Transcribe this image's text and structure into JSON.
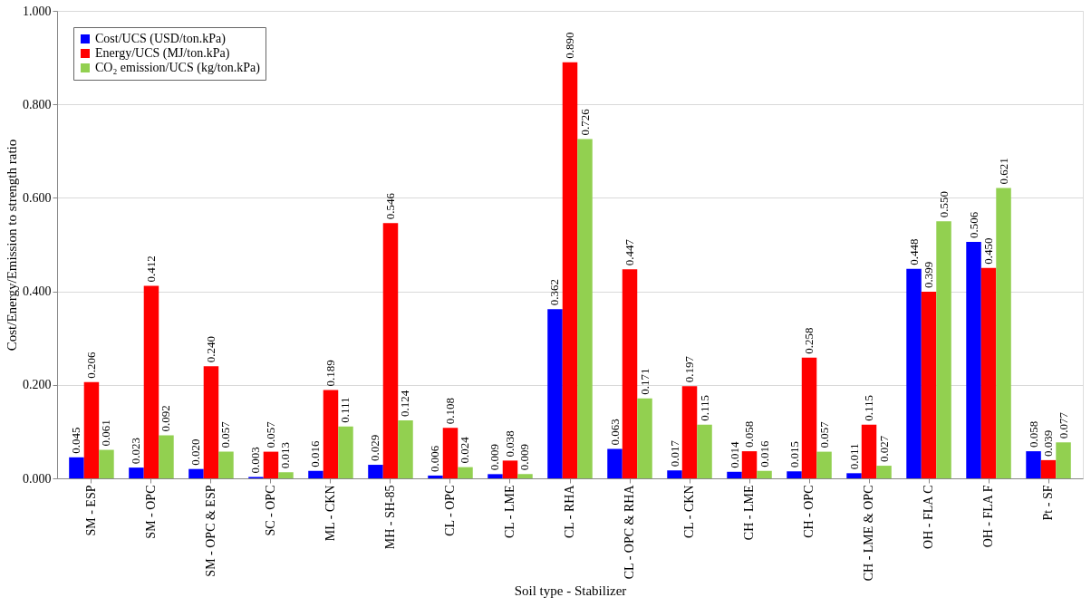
{
  "chart_data": {
    "type": "bar",
    "xlabel": "Soil type - Stabilizer",
    "ylabel": "Cost/Energy/Emission to strength ratio",
    "categories": [
      "SM - ESP",
      "SM - OPC",
      "SM - OPC & ESP",
      "SC - OPC",
      "ML - CKN",
      "MH - SH-85",
      "CL - OPC",
      "CL - LME",
      "CL - RHA",
      "CL - OPC & RHA",
      "CL - CKN",
      "CH - LME",
      "CH - OPC",
      "CH - LME & OPC",
      "OH - FLA C",
      "OH - FLA F",
      "Pt - SF"
    ],
    "series": [
      {
        "name": "Cost/UCS (USD/ton.kPa)",
        "color": "#0000ff",
        "values": [
          0.045,
          0.023,
          0.02,
          0.003,
          0.016,
          0.029,
          0.006,
          0.009,
          0.362,
          0.063,
          0.017,
          0.014,
          0.015,
          0.011,
          0.448,
          0.506,
          0.058
        ],
        "value_labels": [
          "0.045",
          "0.023",
          "0.020",
          "0.003",
          "0.016",
          "0.029",
          "0.006",
          "0.009",
          "0.362",
          "0.063",
          "0.017",
          "0.014",
          "0.015",
          "0.011",
          "0.448",
          "0.506",
          "0.058"
        ]
      },
      {
        "name": "Energy/UCS (MJ/ton.kPa)",
        "color": "#ff0000",
        "values": [
          0.206,
          0.412,
          0.24,
          0.057,
          0.189,
          0.546,
          0.108,
          0.038,
          0.89,
          0.447,
          0.197,
          0.058,
          0.258,
          0.115,
          0.399,
          0.45,
          0.039
        ],
        "value_labels": [
          "0.206",
          "0.412",
          "0.240",
          "0.057",
          "0.189",
          "0.546",
          "0.108",
          "0.038",
          "0.890",
          "0.447",
          "0.197",
          "0.058",
          "0.258",
          "0.115",
          "0.399",
          "0.450",
          "0.039"
        ]
      },
      {
        "name": "CO₂ emission/UCS (kg/ton.kPa)",
        "color": "#92d050",
        "values": [
          0.061,
          0.092,
          0.057,
          0.013,
          0.111,
          0.124,
          0.024,
          0.009,
          0.726,
          0.171,
          0.115,
          0.016,
          0.057,
          0.027,
          0.55,
          0.621,
          0.077
        ],
        "value_labels": [
          "0.061",
          "0.092",
          "0.057",
          "0.013",
          "0.111",
          "0.124",
          "0.024",
          "0.009",
          "0.726",
          "0.171",
          "0.115",
          "0.016",
          "0.057",
          "0.027",
          "0.550",
          "0.621",
          "0.077"
        ]
      }
    ],
    "ylim": [
      0,
      1
    ],
    "yticks": [
      {
        "value": 0,
        "label": "0.000"
      },
      {
        "value": 0.2,
        "label": "0.200"
      },
      {
        "value": 0.4,
        "label": "0.400"
      },
      {
        "value": 0.6,
        "label": "0.600"
      },
      {
        "value": 0.8,
        "label": "0.800"
      },
      {
        "value": 1,
        "label": "1.000"
      }
    ],
    "grid": "y",
    "legend": "top left"
  }
}
